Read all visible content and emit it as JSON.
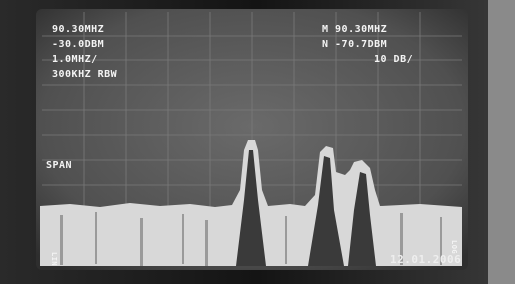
{
  "screen": {
    "top_left": [
      "90.30MHZ",
      "-30.0DBM",
      "1.0MHZ/",
      "300KHZ RBW"
    ],
    "top_right": [
      "M 90.30MHZ",
      "N -70.7DBM",
      "10 DB/"
    ],
    "span_label": "SPAN",
    "left_side": "LIN",
    "right_side": "LOG",
    "date_stamp": "12.01.2006"
  }
}
